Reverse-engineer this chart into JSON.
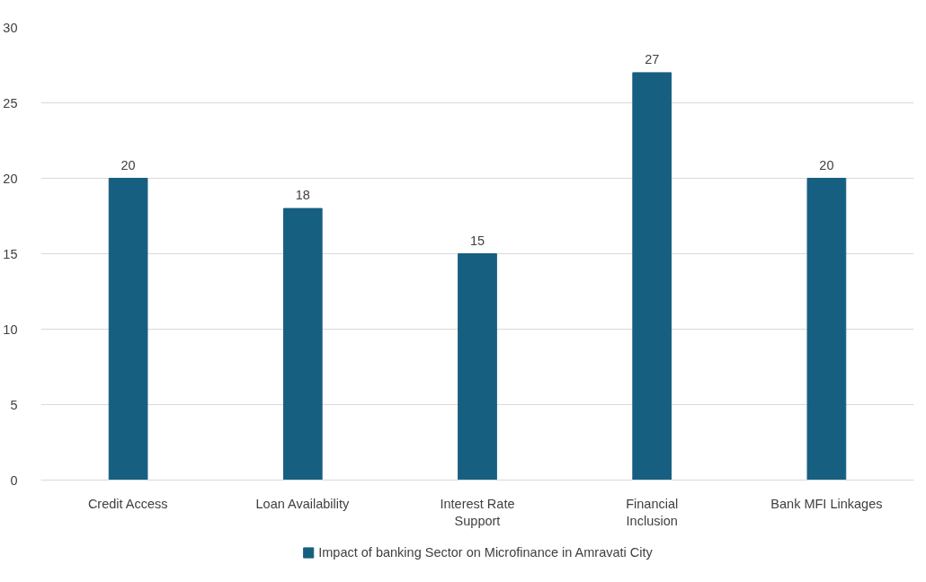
{
  "chart_data": {
    "type": "bar",
    "categories": [
      "Credit Access",
      "Loan Availability",
      "Interest Rate Support",
      "Financial Inclusion",
      "Bank MFI Linkages"
    ],
    "series": [
      {
        "name": "Impact of banking Sector on Microfinance in Amravati City",
        "color": "#175f80",
        "values": [
          20,
          18,
          15,
          27,
          20
        ]
      }
    ],
    "ylim": [
      0,
      30
    ],
    "yticks": [
      0,
      5,
      10,
      15,
      20,
      25,
      30
    ],
    "grid": "y",
    "legend": "bottom",
    "data_labels": true
  }
}
